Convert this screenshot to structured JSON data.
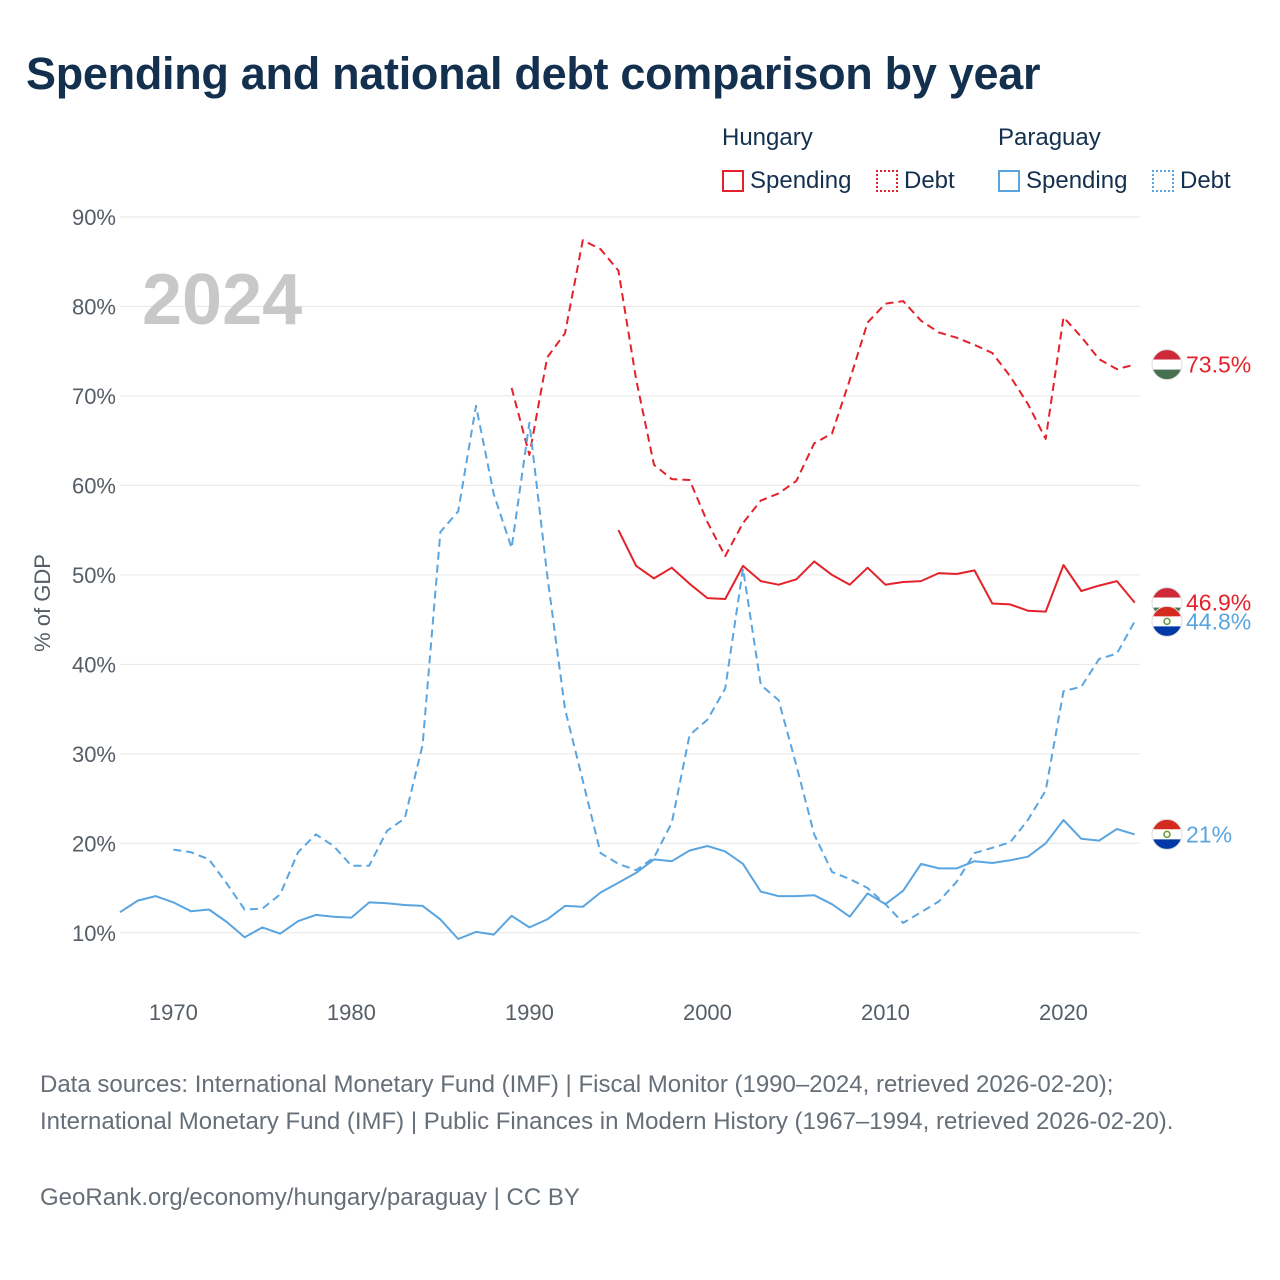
{
  "title": "Spending and national debt comparison by year",
  "legend": {
    "groups": [
      {
        "name": "Hungary",
        "items": [
          {
            "label": "Spending"
          },
          {
            "label": "Debt"
          }
        ]
      },
      {
        "name": "Paraguay",
        "items": [
          {
            "label": "Spending"
          },
          {
            "label": "Debt"
          }
        ]
      }
    ]
  },
  "colors": {
    "hungary": "#e4222b",
    "paraguay": "#5aa5e0",
    "grid": "#e6e6e6",
    "year_watermark": "#c8c8c8",
    "text": "#14304f",
    "axis_text": "#555d66"
  },
  "footer": {
    "sources": "Data sources: International Monetary Fund (IMF) | Fiscal Monitor (1990–2024, retrieved 2026-02-20); International Monetary Fund (IMF) | Public Finances in Modern History (1967–1994, retrieved 2026-02-20).",
    "credit": "GeoRank.org/economy/hungary/paraguay | CC BY"
  },
  "chart_data": {
    "type": "line",
    "title": "Spending and national debt comparison by year",
    "ylabel": "% of GDP",
    "xlabel": "",
    "year_label": "2024",
    "xlim": [
      1967,
      2024.3
    ],
    "ylim": [
      4.5,
      91
    ],
    "grid": true,
    "x_ticks": [
      1970,
      1980,
      1990,
      2000,
      2010,
      2020
    ],
    "y_ticks": [
      10,
      20,
      30,
      40,
      50,
      60,
      70,
      80,
      90
    ],
    "y_tick_labels": [
      "10%",
      "20%",
      "30%",
      "40%",
      "50%",
      "60%",
      "70%",
      "80%",
      "90%"
    ],
    "series": [
      {
        "name": "Hungary Spending",
        "country": "hungary",
        "style": "solid",
        "end_label": "46.9%",
        "flag": "hungary",
        "x": [
          1995,
          1996,
          1997,
          1998,
          1999,
          2000,
          2001,
          2002,
          2003,
          2004,
          2005,
          2006,
          2007,
          2008,
          2009,
          2010,
          2011,
          2012,
          2013,
          2014,
          2015,
          2016,
          2017,
          2018,
          2019,
          2020,
          2021,
          2022,
          2023,
          2024
        ],
        "values": [
          55.0,
          51.0,
          49.6,
          50.8,
          49.0,
          47.4,
          47.3,
          51.0,
          49.3,
          48.9,
          49.5,
          51.5,
          50.0,
          48.9,
          50.8,
          48.9,
          49.2,
          49.3,
          50.2,
          50.1,
          50.5,
          46.8,
          46.7,
          46.0,
          45.9,
          51.1,
          48.2,
          48.8,
          49.3,
          46.9
        ]
      },
      {
        "name": "Hungary Debt",
        "country": "hungary",
        "style": "dashed",
        "end_label": "73.5%",
        "flag": "hungary",
        "x": [
          1989,
          1990,
          1991,
          1992,
          1993,
          1994,
          1995,
          1996,
          1997,
          1998,
          1999,
          2000,
          2001,
          2002,
          2003,
          2004,
          2005,
          2006,
          2007,
          2008,
          2009,
          2010,
          2011,
          2012,
          2013,
          2014,
          2015,
          2016,
          2017,
          2018,
          2019,
          2020,
          2021,
          2022,
          2023,
          2024
        ],
        "values": [
          70.9,
          63.4,
          74.3,
          77.0,
          87.4,
          86.4,
          84.0,
          71.8,
          62.3,
          60.7,
          60.6,
          55.9,
          52.1,
          55.8,
          58.3,
          59.1,
          60.5,
          64.7,
          65.8,
          71.8,
          78.2,
          80.3,
          80.6,
          78.4,
          77.1,
          76.5,
          75.7,
          74.8,
          72.2,
          69.1,
          65.2,
          78.8,
          76.6,
          74.1,
          73.0,
          73.5
        ]
      },
      {
        "name": "Paraguay Spending",
        "country": "paraguay",
        "style": "solid",
        "end_label": "21%",
        "flag": "paraguay",
        "x": [
          1967,
          1968,
          1969,
          1970,
          1971,
          1972,
          1973,
          1974,
          1975,
          1976,
          1977,
          1978,
          1979,
          1980,
          1981,
          1982,
          1983,
          1984,
          1985,
          1986,
          1987,
          1988,
          1989,
          1990,
          1991,
          1992,
          1993,
          1994,
          1995,
          1996,
          1997,
          1998,
          1999,
          2000,
          2001,
          2002,
          2003,
          2004,
          2005,
          2006,
          2007,
          2008,
          2009,
          2010,
          2011,
          2012,
          2013,
          2014,
          2015,
          2016,
          2017,
          2018,
          2019,
          2020,
          2021,
          2022,
          2023,
          2024
        ],
        "values": [
          12.3,
          13.6,
          14.1,
          13.4,
          12.4,
          12.6,
          11.2,
          9.5,
          10.6,
          9.9,
          11.3,
          12.0,
          11.8,
          11.7,
          13.4,
          13.3,
          13.1,
          13.0,
          11.5,
          9.3,
          10.1,
          9.8,
          11.9,
          10.6,
          11.5,
          13.0,
          12.9,
          14.5,
          15.6,
          16.7,
          18.2,
          18.0,
          19.2,
          19.7,
          19.1,
          17.7,
          14.6,
          14.1,
          14.1,
          14.2,
          13.2,
          11.8,
          14.4,
          13.2,
          14.7,
          17.7,
          17.2,
          17.2,
          18.0,
          17.8,
          18.1,
          18.5,
          20.0,
          22.6,
          20.5,
          20.3,
          21.6,
          21.0
        ]
      },
      {
        "name": "Paraguay Debt",
        "country": "paraguay",
        "style": "dashed",
        "end_label": "44.8%",
        "flag": "paraguay",
        "x": [
          1970,
          1971,
          1972,
          1973,
          1974,
          1975,
          1976,
          1977,
          1978,
          1979,
          1980,
          1981,
          1982,
          1983,
          1984,
          1985,
          1986,
          1987,
          1988,
          1989,
          1990,
          1991,
          1992,
          1993,
          1994,
          1995,
          1996,
          1997,
          1998,
          1999,
          2000,
          2001,
          2002,
          2003,
          2004,
          2005,
          2006,
          2007,
          2008,
          2009,
          2010,
          2011,
          2012,
          2013,
          2014,
          2015,
          2016,
          2017,
          2018,
          2019,
          2020,
          2021,
          2022,
          2023,
          2024
        ],
        "values": [
          19.3,
          19.0,
          18.2,
          15.5,
          12.6,
          12.7,
          14.3,
          19.0,
          21.0,
          19.7,
          17.5,
          17.5,
          21.4,
          22.8,
          31.0,
          54.8,
          57.1,
          68.9,
          59.0,
          53.0,
          67.0,
          50.0,
          35.0,
          27.0,
          18.9,
          17.7,
          17.0,
          18.4,
          22.3,
          32.1,
          33.8,
          37.3,
          50.7,
          37.7,
          36.0,
          28.7,
          21.0,
          16.8,
          16.0,
          15.0,
          13.2,
          11.1,
          12.3,
          13.5,
          15.7,
          18.9,
          19.5,
          20.1,
          22.6,
          25.9,
          37.0,
          37.5,
          40.6,
          41.2,
          44.8
        ]
      }
    ]
  }
}
